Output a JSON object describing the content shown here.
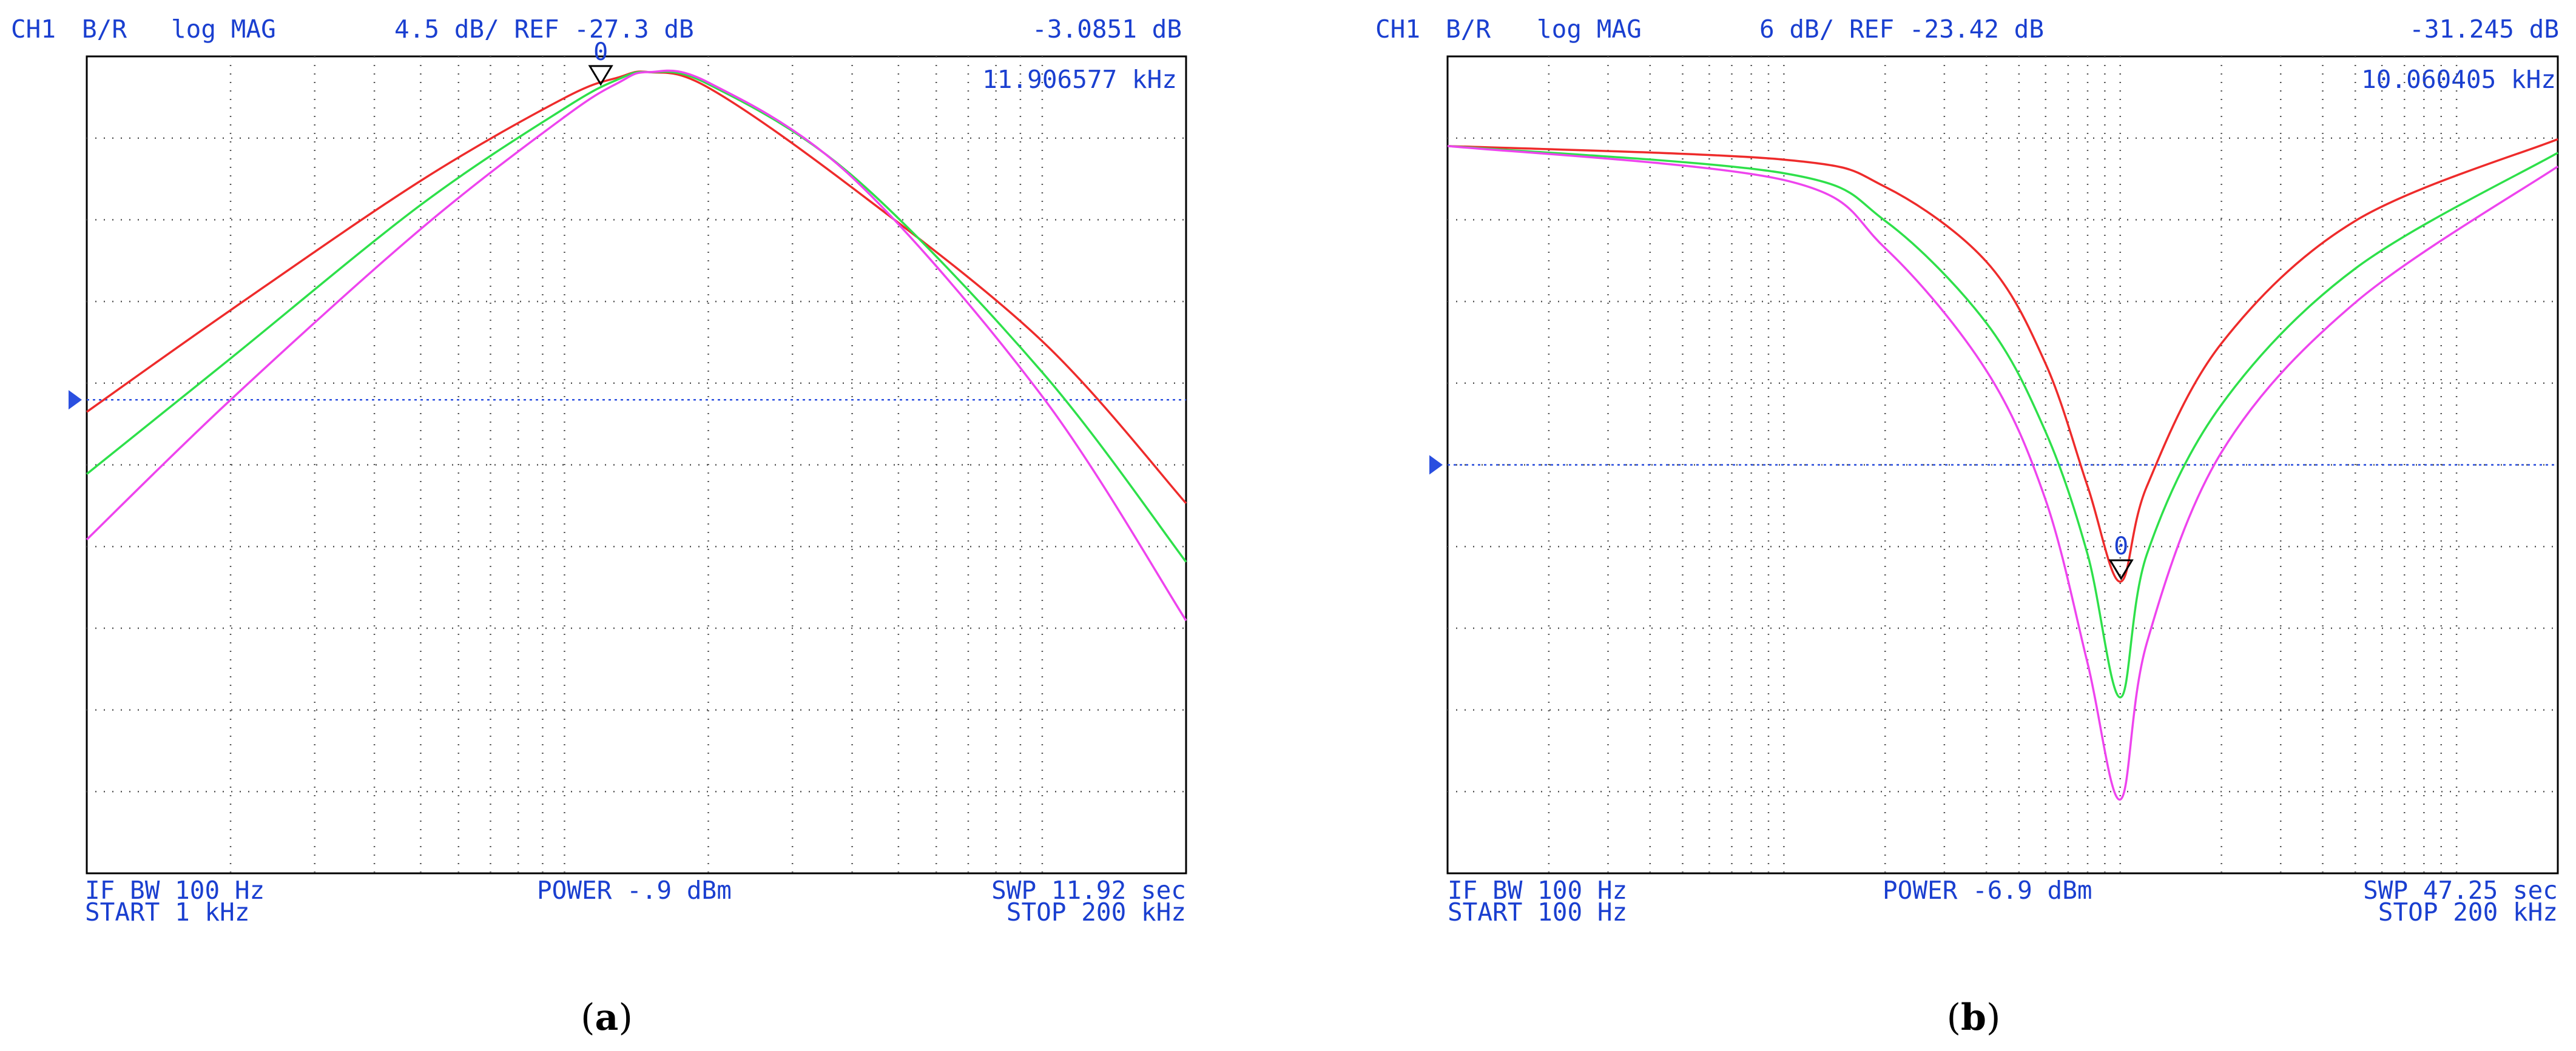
{
  "panels": [
    {
      "caption": "a",
      "header": {
        "channel": "CH1",
        "measure": "B/R",
        "format": "log MAG",
        "scale": "4.5 dB/ REF -27.3 dB",
        "marker_value": "-3.0851 dB"
      },
      "marker_freq": "11.906577 kHz",
      "marker_label": "0",
      "footer": {
        "ifbw": "IF BW 100 Hz",
        "start": "START  1 kHz",
        "power": "POWER -.9 dBm",
        "swp": "SWP  11.92 sec",
        "stop": "STOP  200 kHz"
      }
    },
    {
      "caption": "b",
      "header": {
        "channel": "CH1",
        "measure": "B/R",
        "format": "log MAG",
        "scale": "6 dB/ REF -23.42 dB",
        "marker_value": "-31.245 dB"
      },
      "marker_freq": "10.060405 kHz",
      "marker_label": "0",
      "footer": {
        "ifbw": "IF BW 100 Hz",
        "start": "START  100 Hz",
        "power": "POWER -6.9 dBm",
        "swp": "SWP  47.25 sec",
        "stop": "STOP  200 kHz"
      }
    }
  ],
  "colors": {
    "text": "#1a3fd0",
    "grid": "#555555",
    "ref_line": "#2a4fe0",
    "red": "#ee2b2b",
    "green": "#2ee04a",
    "magenta": "#ee44ee"
  },
  "chart_data": [
    {
      "type": "line",
      "x_scale": "log",
      "x_unit": "Hz",
      "xlim": [
        1000,
        200000
      ],
      "y_unit": "dB",
      "scale_per_div": 4.5,
      "ref_value": -27.3,
      "ref_division_from_top": 6.2,
      "ylim": [
        -54.75,
        -7.39
      ],
      "series": [
        {
          "color": "red",
          "x": [
            1000,
            2000,
            5000,
            10000,
            13000,
            15000,
            20000,
            40000,
            100000,
            200000
          ],
          "y": [
            -28.0,
            -22.1,
            -14.6,
            -9.8,
            -8.6,
            -8.3,
            -9.2,
            -15.0,
            -23.9,
            -33.3
          ]
        },
        {
          "color": "green",
          "x": [
            1000,
            2000,
            5000,
            10000,
            13000,
            15000,
            20000,
            40000,
            100000,
            200000
          ],
          "y": [
            -31.6,
            -24.9,
            -16.0,
            -10.4,
            -8.7,
            -8.3,
            -9.0,
            -14.3,
            -25.7,
            -36.7
          ]
        },
        {
          "color": "magenta",
          "x": [
            1000,
            2000,
            5000,
            10000,
            13000,
            15000,
            20000,
            40000,
            100000,
            200000
          ],
          "y": [
            -35.4,
            -27.3,
            -17.4,
            -10.9,
            -8.9,
            -8.3,
            -8.9,
            -14.4,
            -27.1,
            -40.1
          ]
        }
      ],
      "marker": {
        "x": 11906.577,
        "y": -3.0851
      }
    },
    {
      "type": "line",
      "x_scale": "log",
      "x_unit": "Hz",
      "xlim": [
        100,
        200000
      ],
      "y_unit": "dB",
      "scale_per_div": 6,
      "ref_value": -23.42,
      "ref_division_from_top": 5.0,
      "ylim": [
        -53.42,
        6.58
      ],
      "series": [
        {
          "color": "red",
          "x": [
            100,
            1000,
            2000,
            4000,
            6000,
            8000,
            10000,
            12000,
            20000,
            50000,
            200000
          ],
          "y": [
            0.0,
            -1.0,
            -3.0,
            -8.5,
            -16.0,
            -25.0,
            -32.0,
            -25.0,
            -14.5,
            -5.5,
            0.5
          ]
        },
        {
          "color": "green",
          "x": [
            100,
            1000,
            2000,
            4000,
            6000,
            8000,
            10000,
            12000,
            20000,
            50000,
            200000
          ],
          "y": [
            0.0,
            -2.0,
            -5.5,
            -13.0,
            -21.0,
            -30.0,
            -40.5,
            -30.0,
            -19.0,
            -9.0,
            -0.5
          ]
        },
        {
          "color": "magenta",
          "x": [
            100,
            1000,
            2000,
            4000,
            6000,
            8000,
            10000,
            12000,
            20000,
            50000,
            200000
          ],
          "y": [
            0.0,
            -2.5,
            -7.5,
            -16.5,
            -26.0,
            -38.0,
            -48.0,
            -36.5,
            -22.5,
            -11.5,
            -1.5
          ]
        }
      ],
      "marker": {
        "x": 10060.405,
        "y": -31.245
      }
    }
  ]
}
